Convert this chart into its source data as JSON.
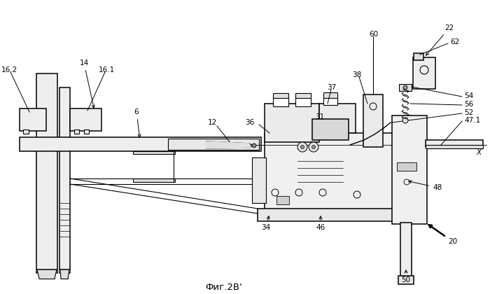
{
  "bg_color": "#ffffff",
  "title": "Фиг.2B'",
  "lc": "#000000",
  "fc_light": "#f0f0f0",
  "fc_med": "#e0e0e0",
  "fc_dark": "#c8c8c8"
}
